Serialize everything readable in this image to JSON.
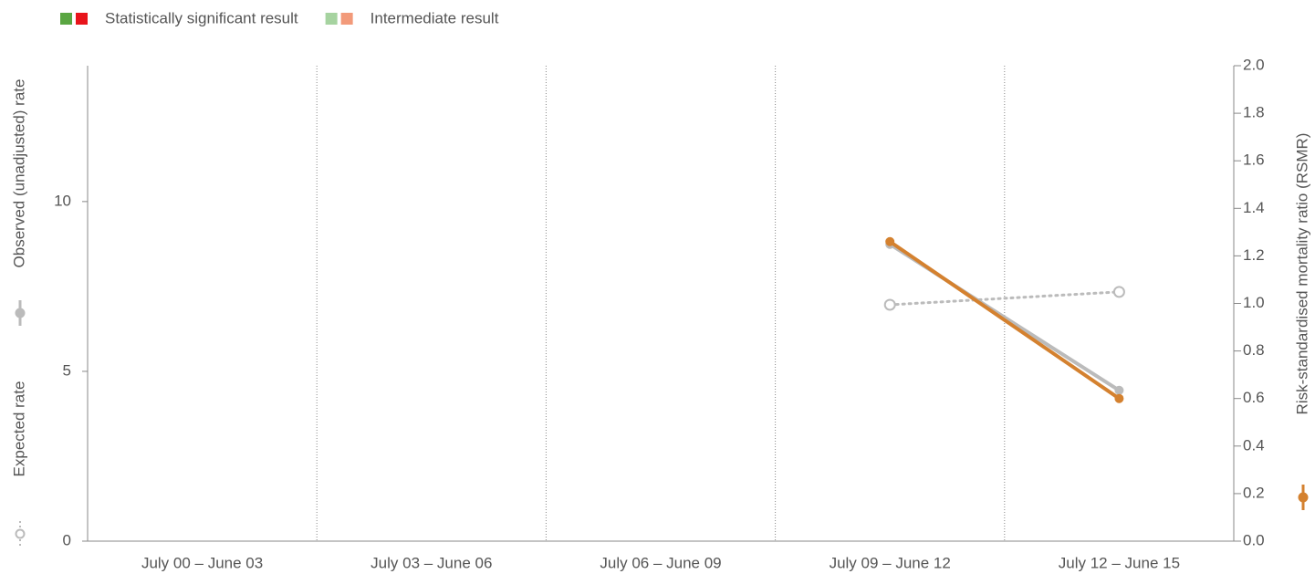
{
  "chart_data": {
    "type": "line",
    "legend": [
      {
        "name": "Statistically significant result",
        "colors": [
          "#5aa642",
          "#e8141b"
        ]
      },
      {
        "name": "Intermediate result",
        "colors": [
          "#a6d3a0",
          "#f29a7a"
        ]
      }
    ],
    "categories": [
      "July 00 – June 03",
      "July 03 – June 06",
      "July 06 – June 09",
      "July 09 – June 12",
      "July 12 – June 15"
    ],
    "series": [
      {
        "name": "Observed (unadjusted) rate",
        "color": "#bbbbbb",
        "style": "solid",
        "marker": "filled",
        "axis": "y",
        "values": [
          null,
          null,
          null,
          8.74,
          4.44
        ]
      },
      {
        "name": "Expected rate",
        "color": "#bbbbbb",
        "style": "dotted",
        "marker": "open",
        "axis": "y",
        "values": [
          null,
          null,
          null,
          6.96,
          7.34
        ]
      },
      {
        "name": "Risk-standardised mortality ratio (RSMR)",
        "color": "#d4812f",
        "style": "solid",
        "marker": "filled",
        "axis": "y2",
        "values": [
          null,
          null,
          null,
          1.26,
          0.6
        ]
      }
    ],
    "ylim": [
      0,
      14
    ],
    "yticks": [
      0,
      5,
      10
    ],
    "y2lim": [
      0,
      2
    ],
    "y2ticks": [
      {
        "value": 0,
        "label": "0.0"
      },
      {
        "value": 0.2,
        "label": "0.2"
      },
      {
        "value": 0.4,
        "label": "0.4"
      },
      {
        "value": 0.6,
        "label": "0.6"
      },
      {
        "value": 0.8,
        "label": "0.8"
      },
      {
        "value": 1,
        "label": "1.0"
      },
      {
        "value": 1.2,
        "label": "1.2"
      },
      {
        "value": 1.4,
        "label": "1.4"
      },
      {
        "value": 1.6,
        "label": "1.6"
      },
      {
        "value": 1.8,
        "label": "1.8"
      },
      {
        "value": 2,
        "label": "2.0"
      }
    ],
    "category_separators": true
  }
}
